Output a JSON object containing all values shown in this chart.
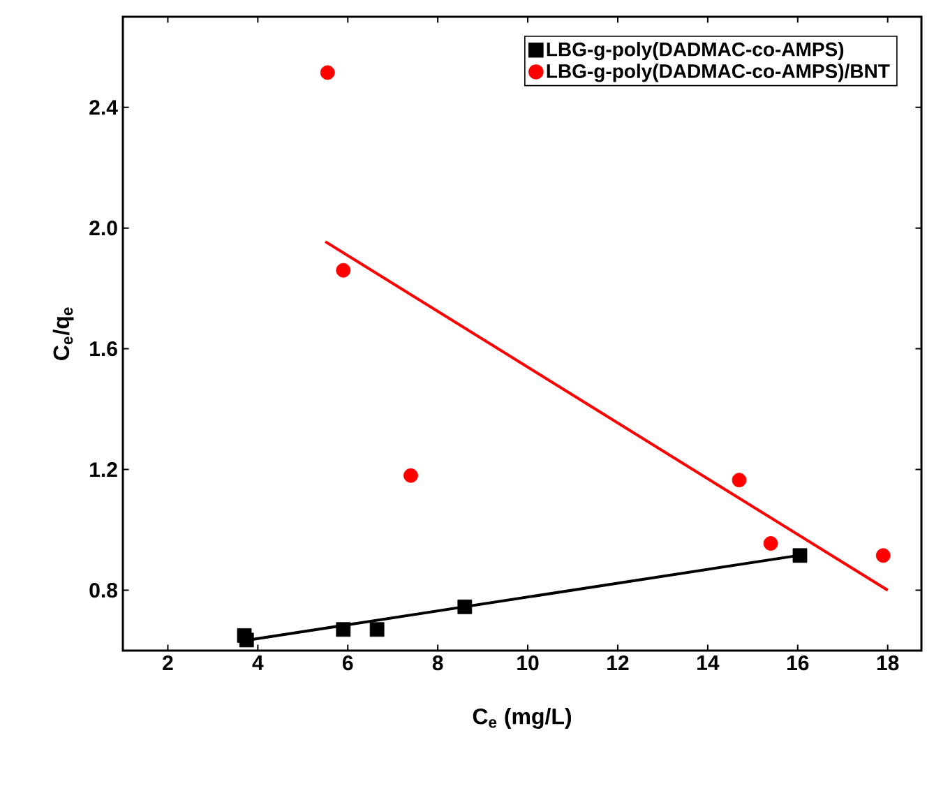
{
  "chart_data": {
    "type": "scatter",
    "xlabel": "C$_{e}$ (mg/L)",
    "ylabel": "C$_{e}$/q$_{e}$",
    "xlim": [
      1,
      18.75
    ],
    "ylim": [
      0.6,
      2.7
    ],
    "xticks": [
      2,
      4,
      6,
      8,
      10,
      12,
      14,
      16,
      18
    ],
    "yticks": [
      0.8,
      1.2,
      1.6,
      {
        "value": 2,
        "label": "2.0"
      },
      2.4
    ],
    "legend": "top right",
    "grid": false,
    "series": [
      {
        "name": "LBG-g-poly(DADMAC-co-AMPS)",
        "marker": "square",
        "color": "#000000",
        "x": [
          3.7,
          3.75,
          5.9,
          6.65,
          8.6,
          16.05
        ],
        "values": [
          0.65,
          0.635,
          0.67,
          0.67,
          0.745,
          0.915
        ]
      },
      {
        "name": "LBG-g-poly(DADMAC-co-AMPS)/BNT",
        "marker": "circle",
        "color": "#ff0000",
        "x": [
          5.55,
          5.9,
          7.4,
          14.7,
          15.4,
          17.9
        ],
        "values": [
          2.515,
          1.86,
          1.18,
          1.165,
          0.955,
          0.915
        ]
      },
      {
        "type": "line",
        "marker": "none",
        "color": "#000000",
        "x": [
          3.7,
          16.05
        ],
        "values": [
          0.633,
          0.916
        ]
      },
      {
        "type": "line",
        "marker": "none",
        "color": "#ff0000",
        "x": [
          5.5,
          18
        ],
        "values": [
          1.955,
          0.8
        ]
      }
    ]
  }
}
